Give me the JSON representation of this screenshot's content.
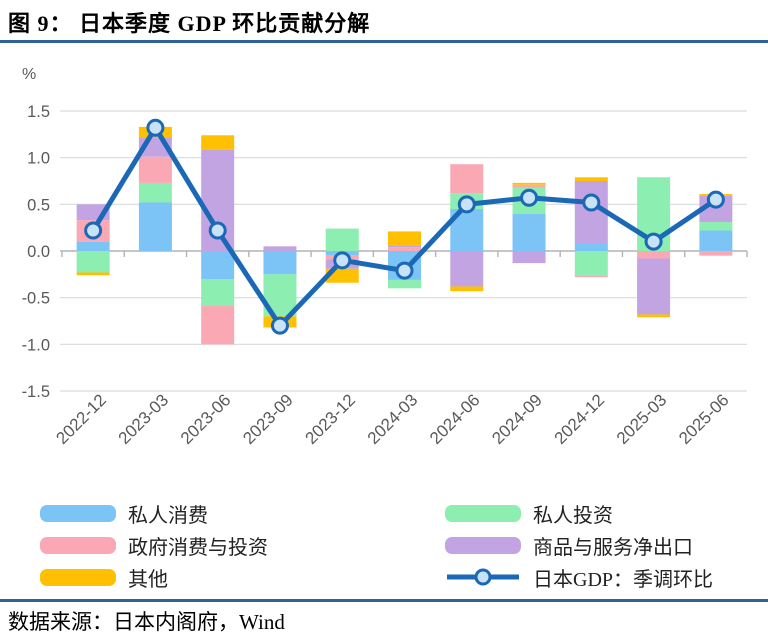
{
  "title": "图 9：  日本季度 GDP 环比贡献分解",
  "source": "数据来源：日本内阁府，Wind",
  "chart_data": {
    "type": "bar",
    "stacked": true,
    "title": "日本季度 GDP 环比贡献分解",
    "ylabel": "%",
    "ylim": [
      -1.5,
      1.5
    ],
    "grid": true,
    "legend_position": "bottom",
    "yticks": [
      "1.5",
      "1.0",
      "0.5",
      "0.0",
      "-0.5",
      "-1.0",
      "-1.5"
    ],
    "categories": [
      "2022-12",
      "2023-03",
      "2023-06",
      "2023-09",
      "2023-12",
      "2024-03",
      "2024-06",
      "2024-09",
      "2024-12",
      "2025-03",
      "2025-06"
    ],
    "series": [
      {
        "name": "私人消费",
        "color": "#7cc4f5",
        "values": [
          0.1,
          0.52,
          -0.3,
          -0.25,
          -0.05,
          -0.31,
          0.45,
          0.4,
          0.08,
          0.0,
          0.22
        ]
      },
      {
        "name": "私人投资",
        "color": "#8ceeb0",
        "values": [
          -0.23,
          0.21,
          -0.29,
          -0.45,
          0.24,
          -0.09,
          0.17,
          0.28,
          -0.26,
          0.79,
          0.09
        ]
      },
      {
        "name": "政府消费与投资",
        "color": "#f9a8b4",
        "values": [
          0.23,
          0.28,
          -0.41,
          0.0,
          -0.04,
          0.04,
          0.31,
          0.03,
          -0.02,
          -0.08,
          -0.05
        ]
      },
      {
        "name": "商品与服务净出口",
        "color": "#c3a4e3",
        "values": [
          0.17,
          0.21,
          1.09,
          0.05,
          -0.1,
          0.02,
          -0.38,
          -0.13,
          0.67,
          -0.6,
          0.28
        ]
      },
      {
        "name": "其他",
        "color": "#ffc002",
        "values": [
          -0.03,
          0.11,
          0.15,
          -0.12,
          -0.15,
          0.15,
          -0.05,
          0.02,
          0.04,
          -0.03,
          0.02
        ]
      }
    ],
    "line_series": {
      "name": "日本GDP：季调环比",
      "color": "#1a68b6",
      "marker_fill": "#c8e2f8",
      "values": [
        0.22,
        1.32,
        0.22,
        -0.8,
        -0.1,
        -0.21,
        0.5,
        0.57,
        0.52,
        0.1,
        0.55
      ]
    },
    "colors": {
      "gridline": "#d9d9d9",
      "axis": "#b3b3b3",
      "tick_label": "#595959",
      "divider": "#2d6399"
    }
  }
}
